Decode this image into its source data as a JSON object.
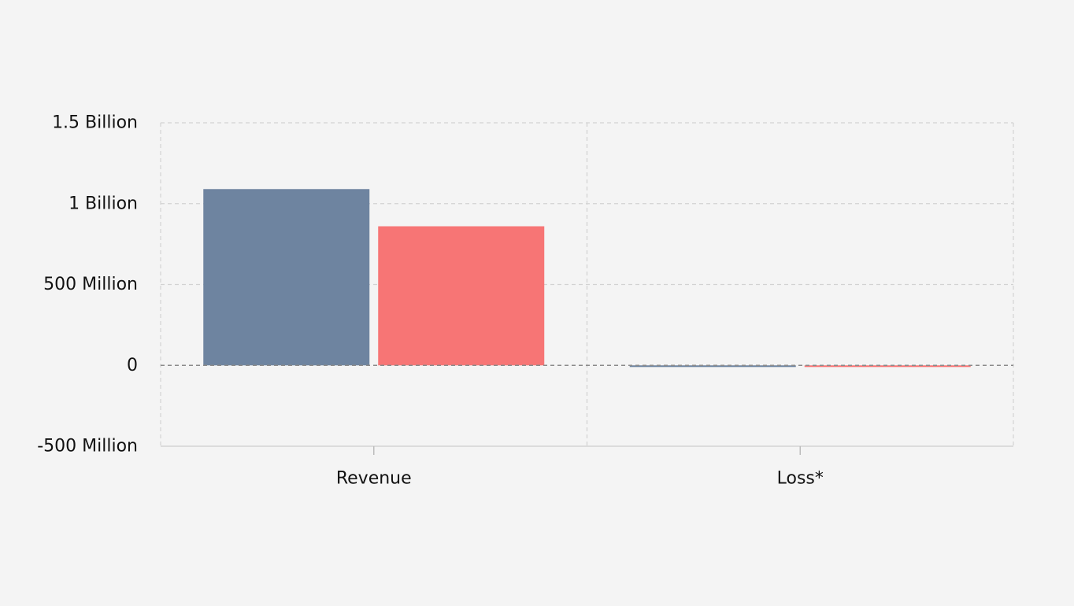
{
  "chart_data": {
    "type": "bar",
    "title": "",
    "xlabel": "",
    "ylabel": "",
    "categories": [
      "Revenue",
      "Loss*"
    ],
    "y_tick_labels": [
      "1.5 Billion",
      "1 Billion",
      "500 Million",
      "0",
      "-500 Million"
    ],
    "y_tick_values": [
      1500000000,
      1000000000,
      500000000,
      0,
      -500000000
    ],
    "ylim": [
      -500000000,
      1500000000
    ],
    "grid": true,
    "legend": "none",
    "series": [
      {
        "values": [
          1090000000,
          -10000000
        ],
        "color": "#6e84a0"
      },
      {
        "values": [
          860000000,
          -10000000
        ],
        "color": "#f77575"
      }
    ]
  }
}
